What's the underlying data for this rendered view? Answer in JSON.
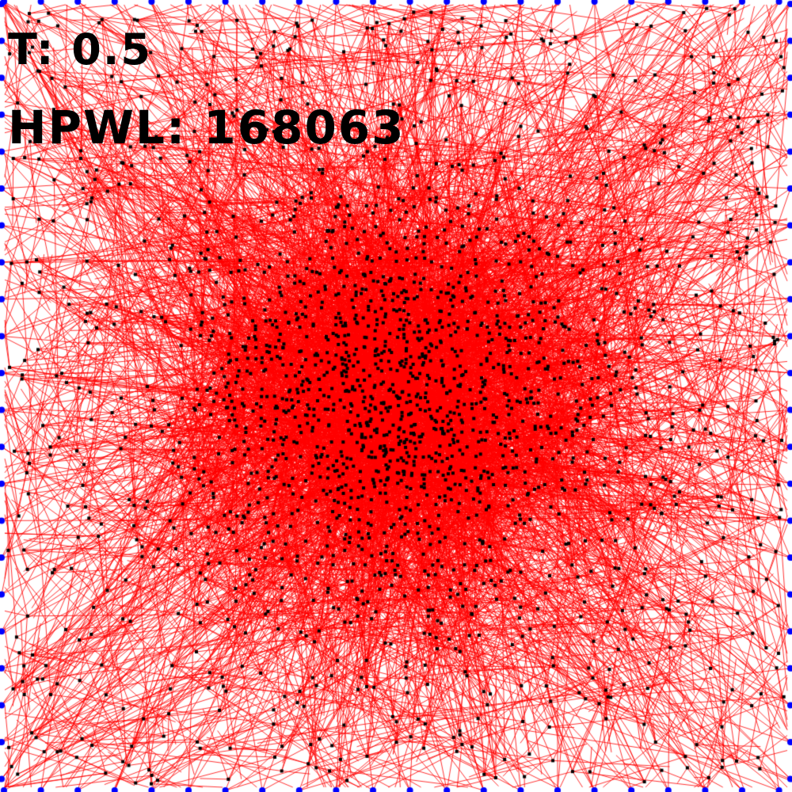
{
  "hud": {
    "temperature_text": "T: 0.5",
    "hpwl_text": "HPWL: 168063"
  },
  "legend_colors": {
    "net_color": "#ff0000",
    "cell_color": "#000000",
    "io_pad_color": "#0000ff",
    "background": "#ffffff"
  }
}
